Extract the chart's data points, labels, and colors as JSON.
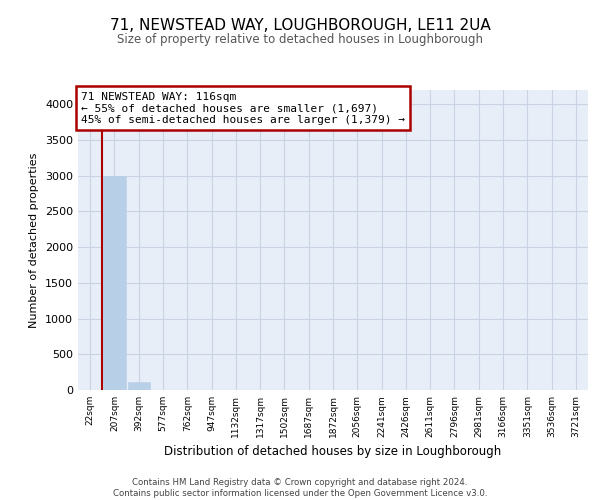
{
  "title1": "71, NEWSTEAD WAY, LOUGHBOROUGH, LE11 2UA",
  "title2": "Size of property relative to detached houses in Loughborough",
  "xlabel": "Distribution of detached houses by size in Loughborough",
  "ylabel": "Number of detached properties",
  "categories": [
    "22sqm",
    "207sqm",
    "392sqm",
    "577sqm",
    "762sqm",
    "947sqm",
    "1132sqm",
    "1317sqm",
    "1502sqm",
    "1687sqm",
    "1872sqm",
    "2056sqm",
    "2241sqm",
    "2426sqm",
    "2611sqm",
    "2796sqm",
    "2981sqm",
    "3166sqm",
    "3351sqm",
    "3536sqm",
    "3721sqm"
  ],
  "values": [
    0,
    3000,
    110,
    0,
    0,
    0,
    0,
    0,
    0,
    0,
    0,
    0,
    0,
    0,
    0,
    0,
    0,
    0,
    0,
    0,
    0
  ],
  "bar_color": "#b8cfe8",
  "grid_color": "#c8d4e4",
  "background_color": "#e8eef8",
  "annotation_text": "71 NEWSTEAD WAY: 116sqm\n← 55% of detached houses are smaller (1,697)\n45% of semi-detached houses are larger (1,379) →",
  "annotation_box_edgecolor": "#aa0000",
  "vline_color": "#aa0000",
  "vline_x": 0.5,
  "ylim": [
    0,
    4200
  ],
  "yticks": [
    0,
    500,
    1000,
    1500,
    2000,
    2500,
    3000,
    3500,
    4000
  ],
  "footer_line1": "Contains HM Land Registry data © Crown copyright and database right 2024.",
  "footer_line2": "Contains public sector information licensed under the Open Government Licence v3.0."
}
